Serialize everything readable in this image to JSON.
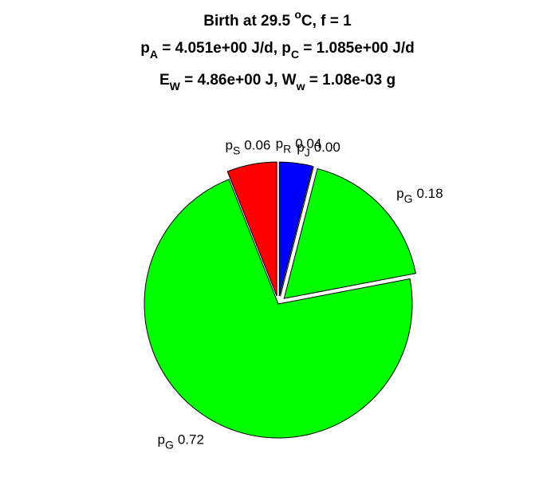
{
  "chart_data": {
    "type": "pie",
    "title": [
      [
        {
          "text": "Birth at 29.5 "
        },
        {
          "text": "o",
          "shift": "sup"
        },
        {
          "text": "C, f = 1"
        }
      ],
      [
        {
          "text": "p"
        },
        {
          "text": "A",
          "shift": "sub"
        },
        {
          "text": " = 4.051e+00 J/d, p"
        },
        {
          "text": "C",
          "shift": "sub"
        },
        {
          "text": " = 1.085e+00 J/d"
        }
      ],
      [
        {
          "text": "E"
        },
        {
          "text": "W",
          "shift": "sub"
        },
        {
          "text": " = 4.86e+00 J, W"
        },
        {
          "text": "w",
          "shift": "sub"
        },
        {
          "text": " = 1.08e-03 g"
        }
      ]
    ],
    "categories": [
      "p",
      "p",
      "p",
      "p",
      "p"
    ],
    "subscripts": [
      "R",
      "J",
      "G",
      "G",
      "S"
    ],
    "values": [
      0.04,
      0,
      0.18,
      0.72,
      0.06
    ],
    "value_labels": [
      "0.04",
      "0.00",
      "0.18",
      "0.72",
      "0.06"
    ],
    "colors": [
      "#0000ff",
      "#ffff00",
      "#00ff00",
      "#00ff00",
      "#ff0000"
    ],
    "explode": [
      true,
      true,
      true,
      false,
      true
    ]
  }
}
